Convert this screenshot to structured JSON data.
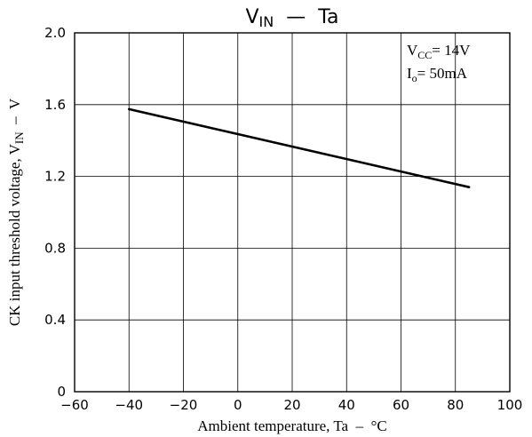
{
  "chart_data": {
    "type": "line",
    "title": {
      "main": "V",
      "sub": "IN",
      "sep": "—",
      "rest": "Ta"
    },
    "xlabel": "Ambient temperature, Ta  –  °C",
    "ylabel": {
      "main": "CK input threshold voltage, V",
      "sub": "IN",
      "tail": "  –  V"
    },
    "xlim": [
      -60,
      100
    ],
    "ylim": [
      0,
      2.0
    ],
    "x_ticks": [
      -60,
      -40,
      -20,
      0,
      20,
      40,
      60,
      80,
      100
    ],
    "x_tick_labels": [
      "−60",
      "−40",
      "−20",
      "0",
      "20",
      "40",
      "60",
      "80",
      "100"
    ],
    "y_ticks": [
      0,
      0.4,
      0.8,
      1.2,
      1.6,
      2.0
    ],
    "y_tick_labels": [
      "0",
      "0.4",
      "0.8",
      "1.2",
      "1.6",
      "2.0"
    ],
    "grid": true,
    "conditions": [
      {
        "main": "V",
        "sub": "CC",
        "rest": "= 14V"
      },
      {
        "main": "I",
        "sub": "o",
        "rest": "= 50mA"
      }
    ],
    "conditions_position": "top-right",
    "series": [
      {
        "x": [
          -40,
          85
        ],
        "y": [
          1.575,
          1.14
        ]
      }
    ]
  }
}
